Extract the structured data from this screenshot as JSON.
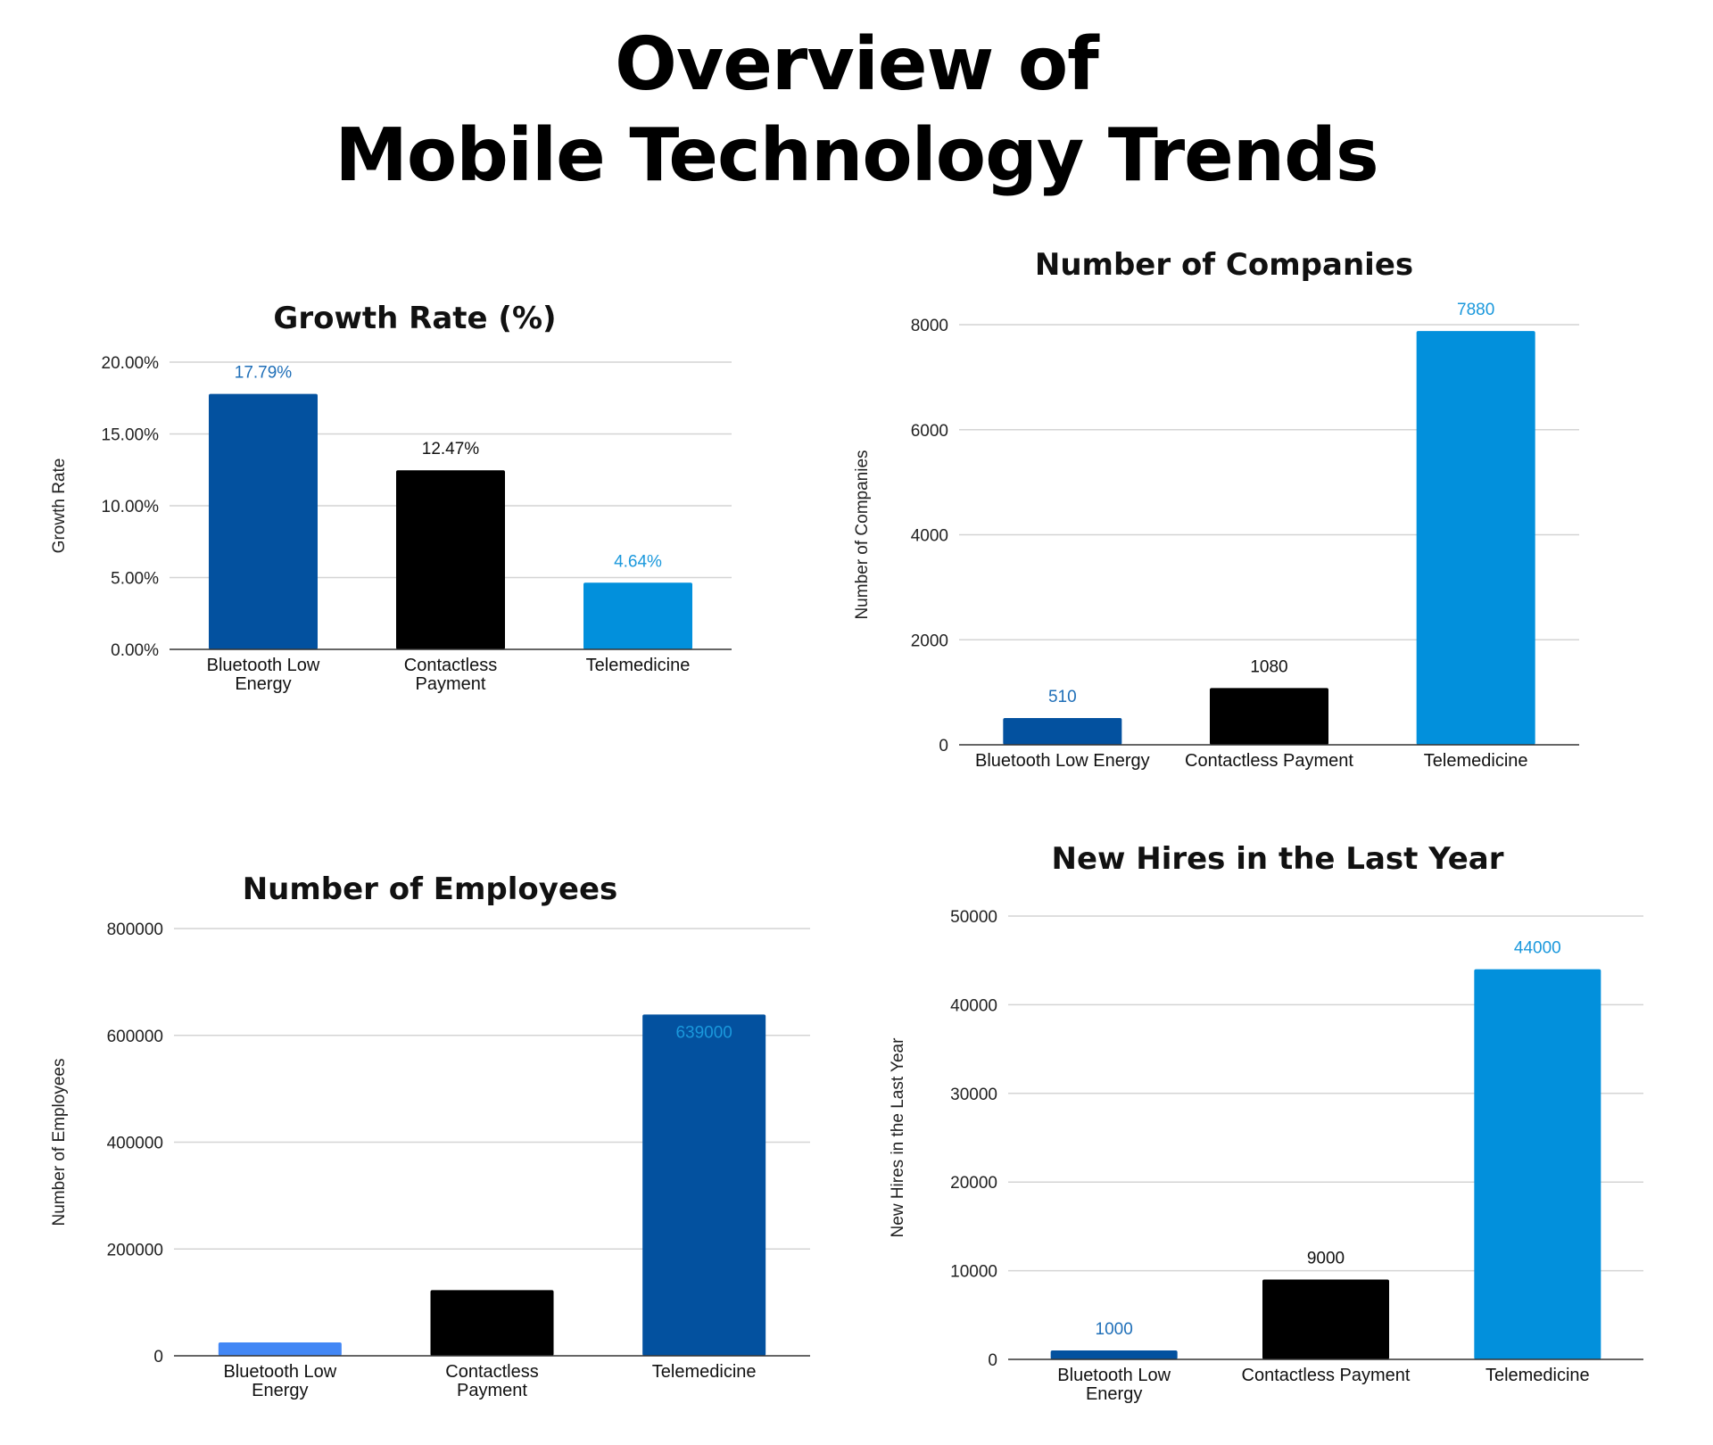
{
  "page_title": [
    "Overview of",
    "Mobile Technology Trends"
  ],
  "chart_data": [
    {
      "id": "growth",
      "type": "bar",
      "title": "Growth Rate (%)",
      "xlabel": "",
      "ylabel": "Growth Rate",
      "categories": [
        [
          "Bluetooth Low",
          "Energy"
        ],
        [
          "Contactless",
          "Payment"
        ],
        [
          "Telemedicine"
        ]
      ],
      "values": [
        17.79,
        12.47,
        4.64
      ],
      "value_labels": [
        "17.79%",
        "12.47%",
        "4.64%"
      ],
      "ylim": [
        0,
        20
      ],
      "yticks": [
        0,
        5,
        10,
        15,
        20
      ],
      "ytick_labels": [
        "0.00%",
        "5.00%",
        "10.00%",
        "15.00%",
        "20.00%"
      ],
      "grid": true,
      "bar_colors": [
        "#03519f",
        "#000000",
        "#0290dc"
      ],
      "label_colors": [
        "#1f6fb8",
        "#111111",
        "#1a98dc"
      ],
      "label_position": "above"
    },
    {
      "id": "companies",
      "type": "bar",
      "title": "Number of Companies",
      "xlabel": "",
      "ylabel": "Number of Companies",
      "categories": [
        [
          "Bluetooth Low Energy"
        ],
        [
          "Contactless Payment"
        ],
        [
          "Telemedicine"
        ]
      ],
      "values": [
        510,
        1080,
        7880
      ],
      "value_labels": [
        "510",
        "1080",
        "7880"
      ],
      "ylim": [
        0,
        8000
      ],
      "yticks": [
        0,
        2000,
        4000,
        6000,
        8000
      ],
      "ytick_labels": [
        "0",
        "2000",
        "4000",
        "6000",
        "8000"
      ],
      "grid": true,
      "bar_colors": [
        "#03519f",
        "#000000",
        "#0290dc"
      ],
      "label_colors": [
        "#1f6fb8",
        "#111111",
        "#1a98dc"
      ],
      "label_position": "above"
    },
    {
      "id": "employees",
      "type": "bar",
      "title": "Number of Employees",
      "xlabel": "",
      "ylabel": "Number of Employees",
      "categories": [
        [
          "Bluetooth Low",
          "Energy"
        ],
        [
          "Contactless",
          "Payment"
        ],
        [
          "Telemedicine"
        ]
      ],
      "values": [
        25000,
        123000,
        639000
      ],
      "value_labels": [
        "",
        "",
        "639000"
      ],
      "ylim": [
        0,
        800000
      ],
      "yticks": [
        0,
        200000,
        400000,
        600000,
        800000
      ],
      "ytick_labels": [
        "0",
        "200000",
        "400000",
        "600000",
        "800000"
      ],
      "grid": true,
      "bar_colors": [
        "#4287f5",
        "#000000",
        "#03519f"
      ],
      "label_colors": [
        "#4287f5",
        "#111111",
        "#1a98dc"
      ],
      "label_position": "inside"
    },
    {
      "id": "hires",
      "type": "bar",
      "title": "New Hires in the Last Year",
      "xlabel": "",
      "ylabel": "New Hires in the Last Year",
      "categories": [
        [
          "Bluetooth Low",
          "Energy"
        ],
        [
          "Contactless Payment"
        ],
        [
          "Telemedicine"
        ]
      ],
      "values": [
        1000,
        9000,
        44000
      ],
      "value_labels": [
        "1000",
        "9000",
        "44000"
      ],
      "ylim": [
        0,
        50000
      ],
      "yticks": [
        0,
        10000,
        20000,
        30000,
        40000,
        50000
      ],
      "ytick_labels": [
        "0",
        "10000",
        "20000",
        "30000",
        "40000",
        "50000"
      ],
      "grid": true,
      "bar_colors": [
        "#03519f",
        "#000000",
        "#0290dc"
      ],
      "label_colors": [
        "#1f6fb8",
        "#111111",
        "#1a98dc"
      ],
      "label_position": "above"
    }
  ]
}
